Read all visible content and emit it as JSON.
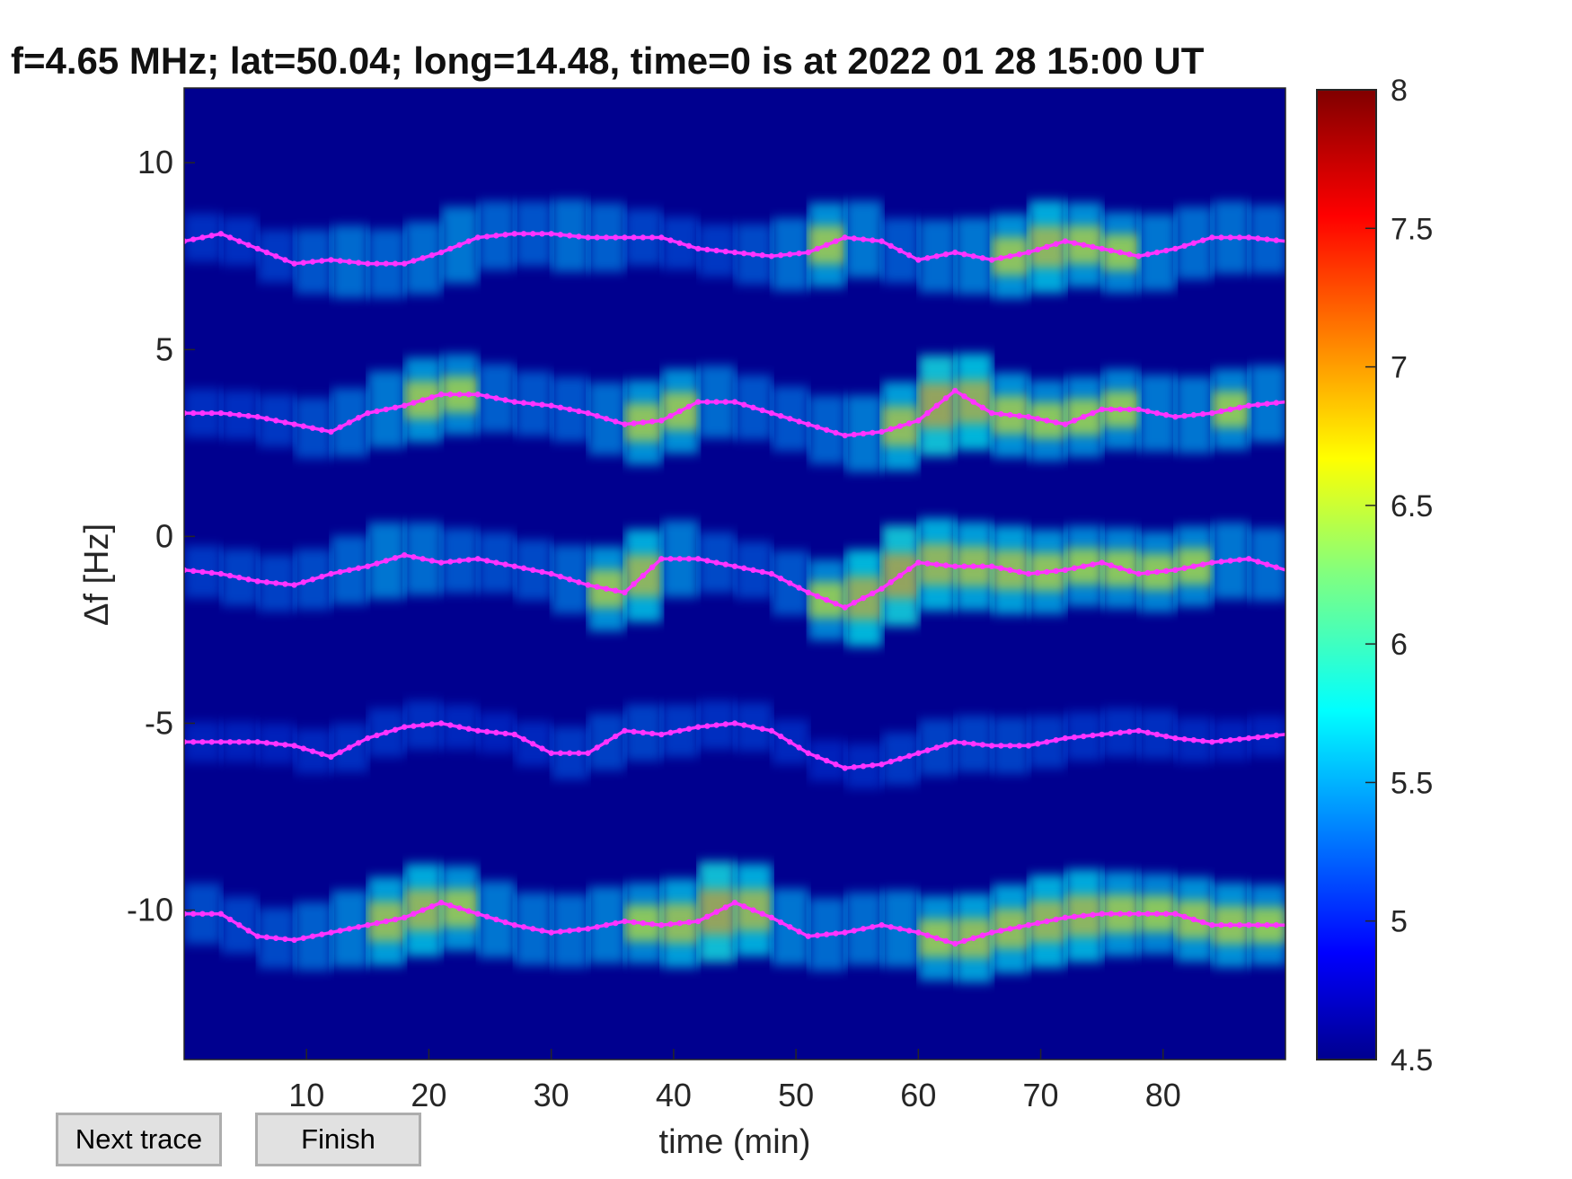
{
  "chart_data": {
    "type": "heatmap",
    "title": "f=4.65 MHz;  lat=50.04; long=14.48, time=0 is at 2022 01 28 15:00 UT",
    "xlabel": "time (min)",
    "ylabel": "Δf [Hz]",
    "xlim": [
      0,
      90
    ],
    "ylim": [
      -14,
      12
    ],
    "xticks": [
      10,
      20,
      30,
      40,
      50,
      60,
      70,
      80
    ],
    "xtick_labels": [
      "10",
      "20",
      "30",
      "40",
      "50",
      "60",
      "70",
      "80"
    ],
    "yticks": [
      10,
      5,
      0,
      -5,
      -10
    ],
    "ytick_labels": [
      "10",
      "5",
      "0",
      "-5",
      "-10"
    ],
    "colorbar": {
      "range": [
        4.5,
        8
      ],
      "ticks": [
        8,
        7.5,
        7,
        6.5,
        6,
        5.5,
        5,
        4.5
      ],
      "tick_labels": [
        "8",
        "7.5",
        "7",
        "6.5",
        "6",
        "5.5",
        "5",
        "4.5"
      ],
      "colormap": "jet"
    },
    "background_color": "#00008f",
    "trace_color": "#ff33ff",
    "series": [
      {
        "x": [
          0,
          3,
          6,
          9,
          12,
          15,
          18,
          21,
          24,
          27,
          30,
          33,
          36,
          39,
          42,
          45,
          48,
          51,
          54,
          57,
          60,
          63,
          66,
          69,
          72,
          75,
          78,
          81,
          84,
          87,
          90
        ],
        "values": [
          7.9,
          8.1,
          7.7,
          7.3,
          7.4,
          7.3,
          7.3,
          7.6,
          8.0,
          8.1,
          8.1,
          8.0,
          8.0,
          8.0,
          7.7,
          7.6,
          7.5,
          7.6,
          8.0,
          7.9,
          7.4,
          7.6,
          7.4,
          7.6,
          7.9,
          7.7,
          7.5,
          7.7,
          8.0,
          8.0,
          7.9
        ],
        "intensity": [
          0.2,
          0.2,
          0.2,
          0.3,
          0.5,
          0.5,
          0.4,
          0.6,
          0.5,
          0.4,
          0.4,
          0.6,
          0.3,
          0.3,
          0.2,
          0.3,
          0.4,
          0.6,
          0.7,
          0.4,
          0.4,
          0.6,
          0.5,
          0.8,
          0.7,
          0.6,
          0.6,
          0.5,
          0.5,
          0.5,
          0.4
        ]
      },
      {
        "x": [
          0,
          3,
          6,
          9,
          12,
          15,
          18,
          21,
          24,
          27,
          30,
          33,
          36,
          39,
          42,
          45,
          48,
          51,
          54,
          57,
          60,
          63,
          66,
          69,
          72,
          75,
          78,
          81,
          84,
          87,
          90
        ],
        "values": [
          3.3,
          3.3,
          3.2,
          3.0,
          2.8,
          3.3,
          3.5,
          3.8,
          3.8,
          3.6,
          3.5,
          3.3,
          3.0,
          3.1,
          3.6,
          3.6,
          3.3,
          3.0,
          2.7,
          2.8,
          3.1,
          3.9,
          3.3,
          3.2,
          3.0,
          3.4,
          3.4,
          3.2,
          3.3,
          3.5,
          3.6
        ],
        "intensity": [
          0.2,
          0.2,
          0.2,
          0.3,
          0.4,
          0.5,
          0.6,
          0.7,
          0.5,
          0.4,
          0.4,
          0.4,
          0.6,
          0.7,
          0.6,
          0.4,
          0.4,
          0.4,
          0.5,
          0.6,
          0.8,
          0.9,
          0.7,
          0.6,
          0.6,
          0.6,
          0.6,
          0.5,
          0.6,
          0.6,
          0.5
        ]
      },
      {
        "x": [
          0,
          3,
          6,
          9,
          12,
          15,
          18,
          21,
          24,
          27,
          30,
          33,
          36,
          39,
          42,
          45,
          48,
          51,
          54,
          57,
          60,
          63,
          66,
          69,
          72,
          75,
          78,
          81,
          84,
          87,
          90
        ],
        "values": [
          -0.9,
          -1.0,
          -1.2,
          -1.3,
          -1.0,
          -0.8,
          -0.5,
          -0.7,
          -0.6,
          -0.8,
          -1.0,
          -1.3,
          -1.5,
          -0.6,
          -0.6,
          -0.8,
          -1.0,
          -1.5,
          -1.9,
          -1.4,
          -0.7,
          -0.8,
          -0.8,
          -1.0,
          -0.9,
          -0.7,
          -1.0,
          -0.9,
          -0.7,
          -0.6,
          -0.9
        ],
        "intensity": [
          0.2,
          0.3,
          0.3,
          0.3,
          0.4,
          0.5,
          0.6,
          0.4,
          0.4,
          0.3,
          0.4,
          0.5,
          0.8,
          0.7,
          0.4,
          0.3,
          0.3,
          0.5,
          0.7,
          0.9,
          0.8,
          0.7,
          0.7,
          0.7,
          0.6,
          0.6,
          0.6,
          0.6,
          0.6,
          0.5,
          0.5
        ]
      },
      {
        "x": [
          0,
          3,
          6,
          9,
          12,
          15,
          18,
          21,
          24,
          27,
          30,
          33,
          36,
          39,
          42,
          45,
          48,
          51,
          54,
          57,
          60,
          63,
          66,
          69,
          72,
          75,
          78,
          81,
          84,
          87,
          90
        ],
        "values": [
          -5.5,
          -5.5,
          -5.5,
          -5.6,
          -5.9,
          -5.4,
          -5.1,
          -5.0,
          -5.2,
          -5.3,
          -5.8,
          -5.8,
          -5.2,
          -5.3,
          -5.1,
          -5.0,
          -5.2,
          -5.8,
          -6.2,
          -6.1,
          -5.8,
          -5.5,
          -5.6,
          -5.6,
          -5.4,
          -5.3,
          -5.2,
          -5.4,
          -5.5,
          -5.4,
          -5.3
        ],
        "intensity": [
          0.1,
          0.1,
          0.1,
          0.1,
          0.2,
          0.2,
          0.2,
          0.2,
          0.1,
          0.1,
          0.2,
          0.3,
          0.3,
          0.3,
          0.2,
          0.2,
          0.2,
          0.1,
          0.1,
          0.2,
          0.3,
          0.3,
          0.3,
          0.3,
          0.2,
          0.2,
          0.2,
          0.2,
          0.1,
          0.1,
          0.1
        ]
      },
      {
        "x": [
          0,
          3,
          6,
          9,
          12,
          15,
          18,
          21,
          24,
          27,
          30,
          33,
          36,
          39,
          42,
          45,
          48,
          51,
          54,
          57,
          60,
          63,
          66,
          69,
          72,
          75,
          78,
          81,
          84,
          87,
          90
        ],
        "values": [
          -10.1,
          -10.1,
          -10.7,
          -10.8,
          -10.6,
          -10.4,
          -10.2,
          -9.8,
          -10.1,
          -10.4,
          -10.6,
          -10.5,
          -10.3,
          -10.4,
          -10.3,
          -9.8,
          -10.2,
          -10.7,
          -10.6,
          -10.4,
          -10.6,
          -10.9,
          -10.6,
          -10.4,
          -10.2,
          -10.1,
          -10.1,
          -10.1,
          -10.4,
          -10.4,
          -10.4
        ],
        "intensity": [
          0.4,
          0.3,
          0.3,
          0.4,
          0.5,
          0.6,
          0.8,
          0.7,
          0.6,
          0.5,
          0.5,
          0.5,
          0.6,
          0.6,
          0.8,
          0.9,
          0.6,
          0.5,
          0.5,
          0.5,
          0.6,
          0.7,
          0.7,
          0.7,
          0.8,
          0.7,
          0.6,
          0.6,
          0.7,
          0.6,
          0.6
        ]
      }
    ]
  },
  "buttons": {
    "next_trace": "Next trace",
    "finish": "Finish"
  }
}
